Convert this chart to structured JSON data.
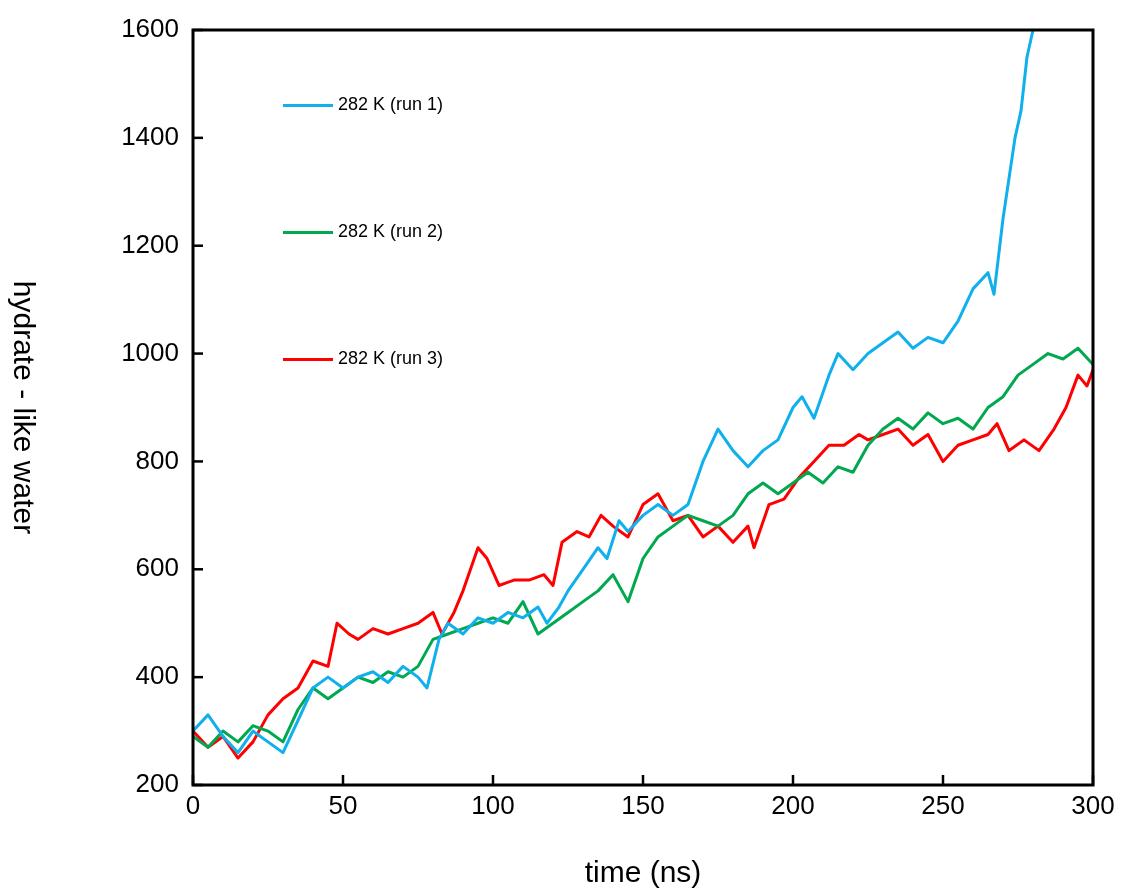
{
  "chart_data": {
    "type": "line",
    "xlabel": "time (ns)",
    "ylabel": "hydrate - like water",
    "xlim": [
      0,
      300
    ],
    "xticks": [
      0,
      50,
      100,
      150,
      200,
      250,
      300
    ],
    "ylim": [
      200,
      1600
    ],
    "yticks": [
      200,
      400,
      600,
      800,
      1000,
      1200,
      1400,
      1600
    ],
    "grid": false,
    "legend": "top left",
    "marker": "none",
    "line_style": "solid",
    "series": [
      {
        "name": "282 K (run 1)",
        "color": "#0fb0ec",
        "x": [
          0,
          5,
          10,
          15,
          20,
          25,
          30,
          35,
          40,
          45,
          50,
          55,
          60,
          65,
          70,
          75,
          78,
          82,
          85,
          90,
          95,
          100,
          105,
          110,
          115,
          118,
          122,
          125,
          130,
          135,
          138,
          142,
          145,
          150,
          155,
          160,
          165,
          170,
          175,
          180,
          185,
          190,
          195,
          200,
          203,
          207,
          212,
          215,
          220,
          225,
          230,
          235,
          240,
          245,
          250,
          255,
          260,
          265,
          267,
          270,
          274,
          276,
          278,
          280
        ],
        "values": [
          300,
          330,
          290,
          260,
          300,
          280,
          260,
          320,
          380,
          400,
          380,
          400,
          410,
          390,
          420,
          400,
          380,
          470,
          500,
          480,
          510,
          500,
          520,
          510,
          530,
          500,
          530,
          560,
          600,
          640,
          620,
          690,
          670,
          700,
          720,
          700,
          720,
          800,
          860,
          820,
          790,
          820,
          840,
          900,
          920,
          880,
          960,
          1000,
          970,
          1000,
          1020,
          1040,
          1010,
          1030,
          1020,
          1060,
          1120,
          1150,
          1110,
          1250,
          1400,
          1450,
          1550,
          1600
        ]
      },
      {
        "name": "282 K (run 2)",
        "color": "#00a84f",
        "x": [
          0,
          5,
          10,
          15,
          20,
          25,
          30,
          35,
          40,
          45,
          50,
          55,
          60,
          65,
          70,
          75,
          80,
          85,
          90,
          95,
          100,
          105,
          110,
          115,
          120,
          125,
          130,
          135,
          140,
          145,
          150,
          155,
          160,
          165,
          170,
          175,
          180,
          185,
          190,
          195,
          200,
          205,
          210,
          215,
          220,
          225,
          230,
          235,
          240,
          245,
          250,
          255,
          260,
          265,
          270,
          275,
          280,
          285,
          290,
          295,
          300
        ],
        "values": [
          290,
          270,
          300,
          280,
          310,
          300,
          280,
          340,
          380,
          360,
          380,
          400,
          390,
          410,
          400,
          420,
          470,
          480,
          490,
          500,
          510,
          500,
          540,
          480,
          500,
          520,
          540,
          560,
          590,
          540,
          620,
          660,
          680,
          700,
          690,
          680,
          700,
          740,
          760,
          740,
          760,
          780,
          760,
          790,
          780,
          830,
          860,
          880,
          860,
          890,
          870,
          880,
          860,
          900,
          920,
          960,
          980,
          1000,
          990,
          1010,
          980
        ]
      },
      {
        "name": "282 K (run 3)",
        "color": "#ff0000",
        "x": [
          0,
          5,
          10,
          15,
          20,
          25,
          30,
          35,
          40,
          45,
          48,
          52,
          55,
          60,
          65,
          70,
          75,
          80,
          83,
          87,
          90,
          95,
          98,
          102,
          107,
          112,
          117,
          120,
          123,
          128,
          132,
          136,
          140,
          145,
          150,
          155,
          160,
          165,
          170,
          175,
          180,
          185,
          187,
          192,
          197,
          202,
          207,
          212,
          217,
          222,
          225,
          230,
          235,
          240,
          245,
          250,
          255,
          260,
          265,
          268,
          272,
          277,
          282,
          287,
          291,
          295,
          298,
          300
        ],
        "values": [
          300,
          270,
          290,
          250,
          280,
          330,
          360,
          380,
          430,
          420,
          500,
          480,
          470,
          490,
          480,
          490,
          500,
          520,
          480,
          520,
          560,
          640,
          620,
          570,
          580,
          580,
          590,
          570,
          650,
          670,
          660,
          700,
          680,
          660,
          720,
          740,
          690,
          700,
          660,
          680,
          650,
          680,
          640,
          720,
          730,
          770,
          800,
          830,
          830,
          850,
          840,
          850,
          860,
          830,
          850,
          800,
          830,
          840,
          850,
          870,
          820,
          840,
          820,
          860,
          900,
          960,
          940,
          970
        ]
      }
    ]
  }
}
